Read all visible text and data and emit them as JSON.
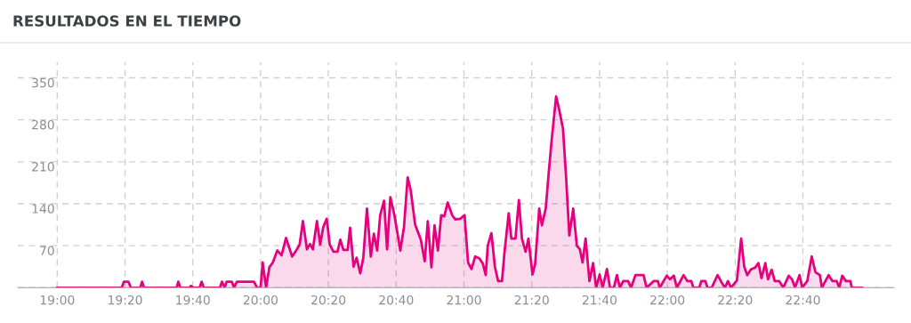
{
  "chart_data": {
    "type": "area",
    "title": "RESULTADOS EN EL TIEMPO",
    "color": "#e6007e",
    "grid": true,
    "line_style": "solid",
    "marker": "none",
    "xlim": [
      18.806,
      23.115
    ],
    "ylim": [
      0,
      376
    ],
    "xticks": [
      {
        "value": 19,
        "label": "19:00"
      },
      {
        "value": 19.3333,
        "label": "19:20"
      },
      {
        "value": 19.6667,
        "label": "19:40"
      },
      {
        "value": 20,
        "label": "20:00"
      },
      {
        "value": 20.3333,
        "label": "20:20"
      },
      {
        "value": 20.6667,
        "label": "20:40"
      },
      {
        "value": 21,
        "label": "21:00"
      },
      {
        "value": 21.3333,
        "label": "21:20"
      },
      {
        "value": 21.6667,
        "label": "21:40"
      },
      {
        "value": 22,
        "label": "22:00"
      },
      {
        "value": 22.3333,
        "label": "22:20"
      },
      {
        "value": 22.6667,
        "label": "22:40"
      }
    ],
    "yticks": [
      {
        "value": 0,
        "label": null
      },
      70,
      140,
      210,
      280,
      350
    ],
    "x": [
      19,
      19.317,
      19.328,
      19.35,
      19.362,
      19.408,
      19.417,
      19.427,
      19.587,
      19.595,
      19.605,
      19.65,
      19.658,
      19.667,
      19.7,
      19.71,
      19.72,
      19.8,
      19.81,
      19.823,
      19.833,
      19.858,
      19.87,
      19.883,
      19.967,
      19.983,
      20,
      20.01,
      20.027,
      20.043,
      20.06,
      20.082,
      20.103,
      20.125,
      20.155,
      20.175,
      20.192,
      20.208,
      20.228,
      20.243,
      20.257,
      20.277,
      20.293,
      20.308,
      20.325,
      20.34,
      20.358,
      20.378,
      20.392,
      20.407,
      20.428,
      20.44,
      20.457,
      20.472,
      20.49,
      20.505,
      20.523,
      20.542,
      20.557,
      20.573,
      20.588,
      20.607,
      20.622,
      20.638,
      20.658,
      20.687,
      20.705,
      20.723,
      20.738,
      20.76,
      20.788,
      20.807,
      20.822,
      20.84,
      20.855,
      20.872,
      20.888,
      20.903,
      20.92,
      20.942,
      20.957,
      20.982,
      21.003,
      21.02,
      21.037,
      21.055,
      21.075,
      21.093,
      21.107,
      21.117,
      21.135,
      21.152,
      21.168,
      21.187,
      21.2,
      21.22,
      21.233,
      21.253,
      21.27,
      21.285,
      21.303,
      21.317,
      21.337,
      21.35,
      21.37,
      21.383,
      21.402,
      21.417,
      21.43,
      21.453,
      21.467,
      21.487,
      21.502,
      21.518,
      21.537,
      21.555,
      21.57,
      21.583,
      21.598,
      21.617,
      21.635,
      21.65,
      21.667,
      21.682,
      21.703,
      21.718,
      21.737,
      21.752,
      21.767,
      21.783,
      21.807,
      21.822,
      21.843,
      21.883,
      21.898,
      21.933,
      21.953,
      21.963,
      21.997,
      22.013,
      22.032,
      22.047,
      22.08,
      22.098,
      22.118,
      22.128,
      22.157,
      22.167,
      22.187,
      22.197,
      22.218,
      22.247,
      22.27,
      22.283,
      22.298,
      22.313,
      22.342,
      22.363,
      22.378,
      22.393,
      22.41,
      22.433,
      22.448,
      22.463,
      22.482,
      22.495,
      22.513,
      22.528,
      22.55,
      22.57,
      22.597,
      22.613,
      22.628,
      22.65,
      22.663,
      22.688,
      22.71,
      22.728,
      22.75,
      22.76,
      22.793,
      22.812,
      22.833,
      22.845,
      22.86,
      22.878,
      22.9,
      22.907,
      22.958
    ],
    "values": [
      0,
      0,
      10,
      10,
      0,
      0,
      10,
      0,
      0,
      10,
      0,
      0,
      3,
      0,
      0,
      10,
      0,
      0,
      10,
      0,
      10,
      10,
      0,
      10,
      10,
      0,
      0,
      42,
      0,
      34,
      42,
      62,
      54,
      83,
      52,
      62,
      72,
      111,
      64,
      73,
      64,
      111,
      72,
      101,
      115,
      72,
      60,
      60,
      80,
      63,
      63,
      100,
      35,
      50,
      24,
      50,
      132,
      52,
      90,
      62,
      121,
      145,
      64,
      151,
      121,
      62,
      101,
      184,
      163,
      105,
      80,
      44,
      111,
      34,
      104,
      62,
      121,
      119,
      142,
      121,
      114,
      115,
      121,
      42,
      31,
      52,
      49,
      40,
      21,
      70,
      91,
      35,
      11,
      11,
      62,
      124,
      82,
      82,
      146,
      82,
      60,
      82,
      22,
      40,
      132,
      104,
      132,
      193,
      242,
      319,
      299,
      265,
      185,
      87,
      132,
      70,
      64,
      42,
      82,
      11,
      41,
      0,
      22,
      0,
      31,
      0,
      0,
      21,
      0,
      11,
      11,
      0,
      21,
      21,
      0,
      11,
      11,
      0,
      20,
      14,
      20,
      0,
      21,
      11,
      11,
      0,
      0,
      11,
      11,
      0,
      0,
      21,
      7,
      0,
      11,
      0,
      12,
      82,
      35,
      21,
      30,
      34,
      41,
      16,
      41,
      14,
      30,
      11,
      11,
      0,
      20,
      14,
      0,
      21,
      0,
      11,
      52,
      26,
      21,
      0,
      21,
      11,
      11,
      0,
      20,
      11,
      11,
      0,
      0
    ]
  }
}
